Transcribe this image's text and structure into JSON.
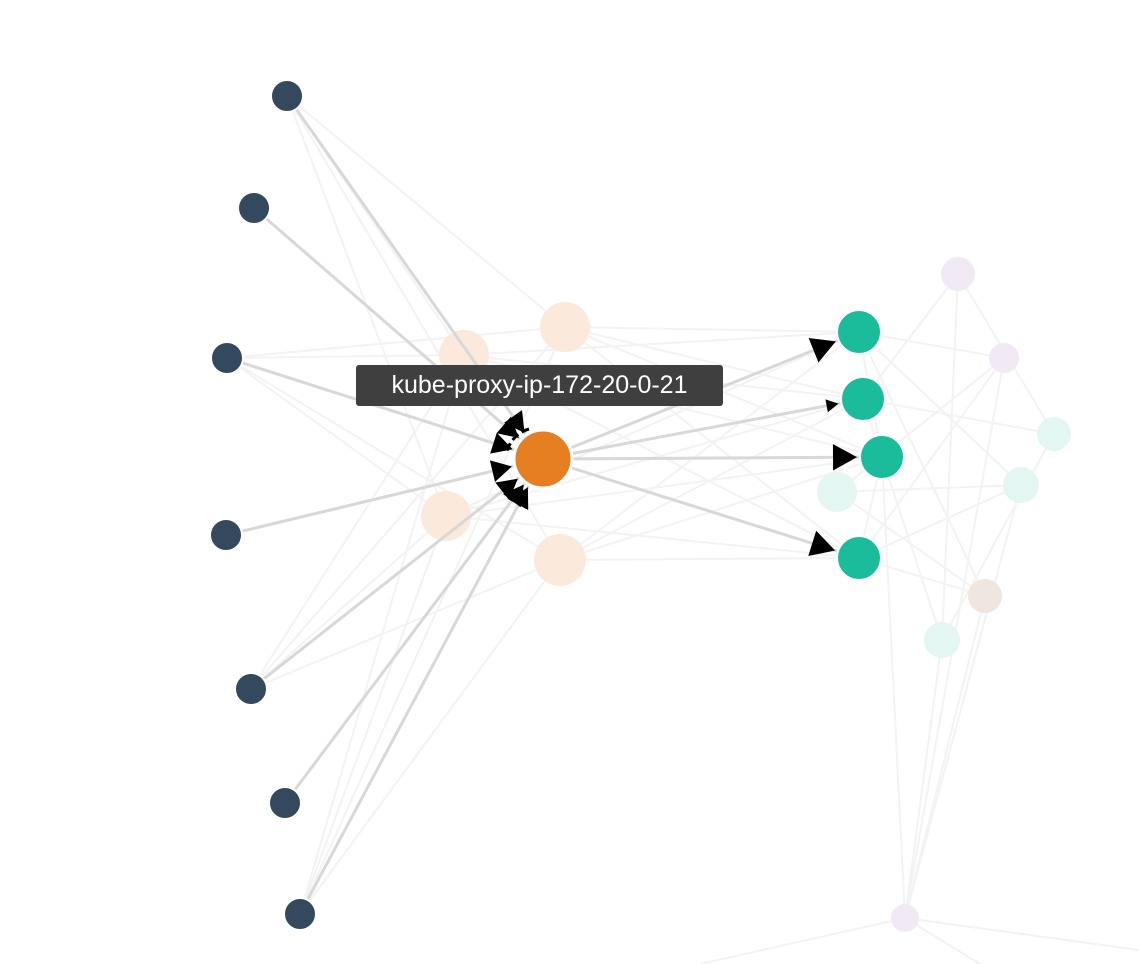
{
  "tooltip": {
    "label": "kube-proxy-ip-172-20-0-21"
  },
  "colors": {
    "selected_node": "#e67e22",
    "source_nodes": "#34495e",
    "target_nodes": "#1abc9c",
    "faded_orange": "#fbe9dc",
    "faded_teal": "#e3f6f1",
    "faded_purple": "#f1eaf4",
    "faded_brown": "#efe6df",
    "active_edge": "#d8d8d8",
    "faded_edge": "#f3f3f3",
    "arrowhead": "#000000",
    "tooltip_bg": "#3f3f3f"
  },
  "graph": {
    "selected_node": {
      "id": "selected-node"
    },
    "source_nodes": [
      {
        "id": "source-node-1"
      },
      {
        "id": "source-node-2"
      },
      {
        "id": "source-node-3"
      },
      {
        "id": "source-node-4"
      },
      {
        "id": "source-node-5"
      },
      {
        "id": "source-node-6"
      },
      {
        "id": "source-node-7"
      }
    ],
    "target_nodes": [
      {
        "id": "target-node-1"
      },
      {
        "id": "target-node-2"
      },
      {
        "id": "target-node-3"
      },
      {
        "id": "target-node-4"
      }
    ],
    "background_nodes_count": 13
  }
}
